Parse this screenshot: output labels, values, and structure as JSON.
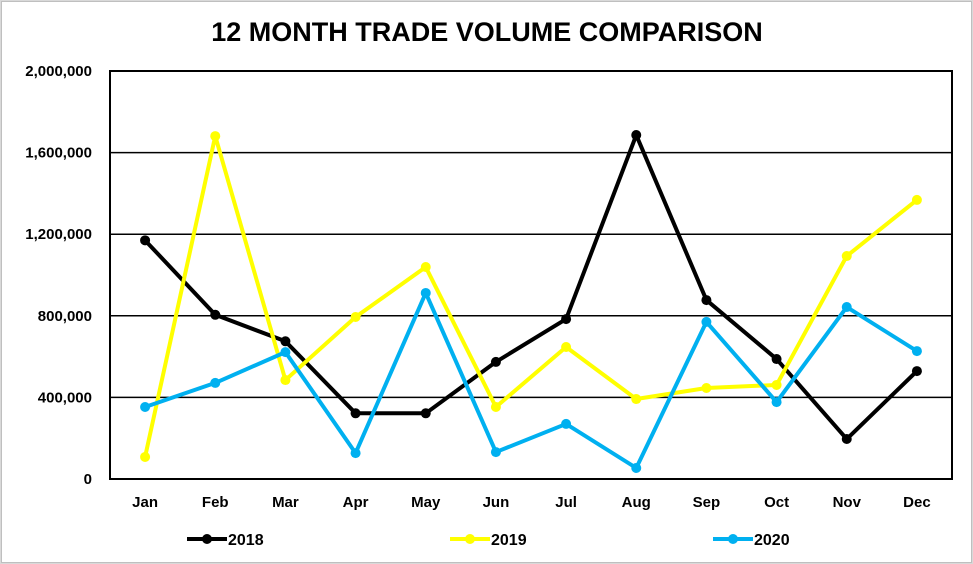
{
  "chart_data": {
    "type": "line",
    "title": "12 MONTH TRADE VOLUME COMPARISON",
    "xlabel": "",
    "ylabel": "",
    "categories": [
      "Jan",
      "Feb",
      "Mar",
      "Apr",
      "May",
      "Jun",
      "Jul",
      "Aug",
      "Sep",
      "Oct",
      "Nov",
      "Dec"
    ],
    "ylim": [
      0,
      2000000
    ],
    "yticks": [
      0,
      400000,
      800000,
      1200000,
      1600000,
      2000000
    ],
    "ytick_labels": [
      "0",
      "400,000",
      "800,000",
      "1,200,000",
      "1,600,000",
      "2,000,000"
    ],
    "grid": true,
    "legend_position": "bottom",
    "series": [
      {
        "name": "2018",
        "color": "#000000",
        "values": [
          1170000,
          805000,
          675000,
          322000,
          322000,
          574000,
          784000,
          1686000,
          877000,
          588000,
          196000,
          529000
        ]
      },
      {
        "name": "2019",
        "color": "#ffff00",
        "values": [
          108000,
          1681000,
          485000,
          794000,
          1039000,
          353000,
          647000,
          392000,
          446000,
          461000,
          1093000,
          1368000
        ]
      },
      {
        "name": "2020",
        "color": "#00b0f0",
        "values": [
          353000,
          471000,
          622000,
          127000,
          912000,
          132000,
          270000,
          54000,
          770000,
          377000,
          843000,
          627000
        ]
      }
    ]
  }
}
